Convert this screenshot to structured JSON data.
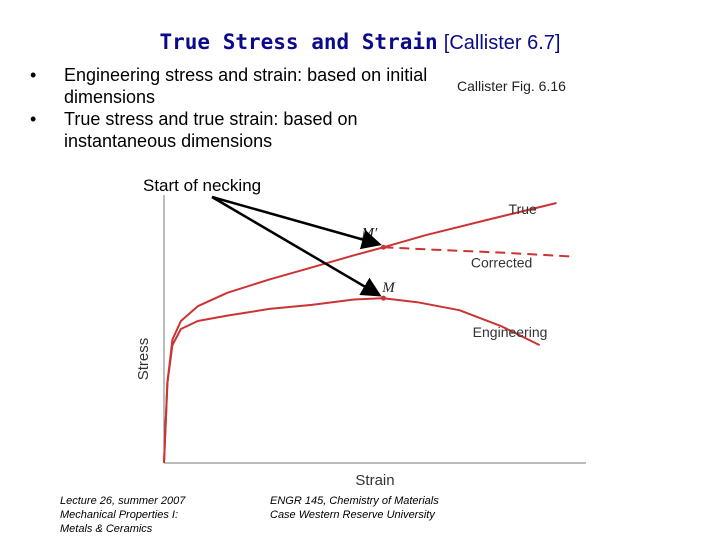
{
  "slide": {
    "title_main": "True Stress and Strain",
    "title_ref": "[Callister 6.7]",
    "bullets": [
      "Engineering stress and strain: based on initial dimensions",
      "True stress and true strain: based on instantaneous dimensions"
    ],
    "figure_caption": "Callister Fig. 6.16",
    "annotation": "Start of necking",
    "footer_left": [
      "Lecture 26, summer 2007",
      "Mechanical Properties I:",
      "Metals & Ceramics"
    ],
    "footer_middle": [
      "ENGR 145, Chemistry of Materials",
      "Case Western Reserve University"
    ]
  },
  "chart_data": {
    "type": "line",
    "xlabel": "Strain",
    "ylabel": "Stress",
    "xlim": [
      0,
      10
    ],
    "ylim": [
      0,
      10
    ],
    "ticks": "none",
    "grid": false,
    "legend": "none",
    "curve_color": "#cc3333",
    "series": [
      {
        "name": "True",
        "linestyle": "solid",
        "x": [
          0,
          0.08,
          0.2,
          0.4,
          0.8,
          1.5,
          2.5,
          3.5,
          4.5,
          5.2,
          6.2,
          7.6,
          9.3
        ],
        "y": [
          0,
          3.0,
          4.6,
          5.3,
          5.85,
          6.35,
          6.85,
          7.3,
          7.75,
          8.05,
          8.5,
          9.05,
          9.7
        ]
      },
      {
        "name": "Corrected",
        "linestyle": "dashed",
        "x": [
          5.2,
          6.5,
          8.0,
          9.7
        ],
        "y": [
          8.05,
          7.95,
          7.85,
          7.7
        ]
      },
      {
        "name": "Engineering",
        "linestyle": "solid",
        "x": [
          0,
          0.08,
          0.2,
          0.4,
          0.8,
          1.5,
          2.5,
          3.5,
          4.5,
          5.2,
          6.0,
          7.0,
          8.0,
          8.9
        ],
        "y": [
          0,
          3.0,
          4.4,
          5.0,
          5.3,
          5.5,
          5.75,
          5.9,
          6.1,
          6.15,
          6.0,
          5.7,
          5.1,
          4.4
        ]
      }
    ],
    "points": [
      {
        "label": "M′",
        "x": 5.2,
        "y": 8.05
      },
      {
        "label": "M",
        "x": 5.2,
        "y": 6.15
      }
    ],
    "curve_labels": [
      {
        "text": "True",
        "x": 8.5,
        "y": 9.3
      },
      {
        "text": "Corrected",
        "x": 8.0,
        "y": 7.3
      },
      {
        "text": "Engineering",
        "x": 8.2,
        "y": 4.7
      }
    ]
  }
}
